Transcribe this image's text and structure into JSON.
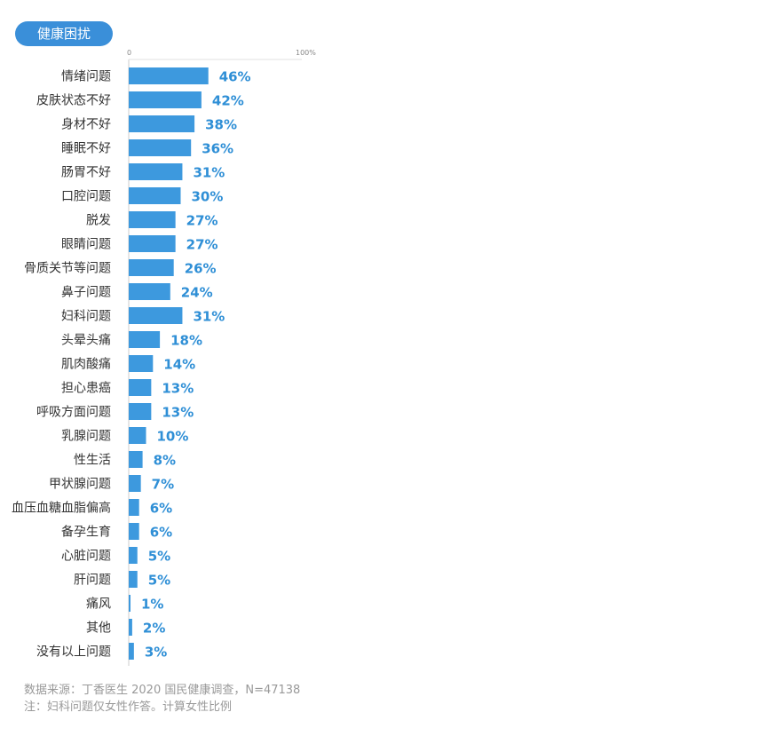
{
  "badge": "健康困扰",
  "footnotes": {
    "source": "数据来源：丁香医生 2020 国民健康调查，N=47138",
    "note": "注：妇科问题仅女性作答。计算女性比例"
  },
  "chart_data": {
    "type": "bar",
    "orientation": "horizontal",
    "title": "健康困扰",
    "categories": [
      "情绪问题",
      "皮肤状态不好",
      "身材不好",
      "睡眠不好",
      "肠胃不好",
      "口腔问题",
      "脱发",
      "眼睛问题",
      "骨质关节等问题",
      "鼻子问题",
      "妇科问题",
      "头晕头痛",
      "肌肉酸痛",
      "担心患癌",
      "呼吸方面问题",
      "乳腺问题",
      "性生活",
      "甲状腺问题",
      "血压血糖血脂偏高",
      "备孕生育",
      "心脏问题",
      "肝问题",
      "痛风",
      "其他",
      "没有以上问题"
    ],
    "values": [
      46,
      42,
      38,
      36,
      31,
      30,
      27,
      27,
      26,
      24,
      31,
      18,
      14,
      13,
      13,
      10,
      8,
      7,
      6,
      6,
      5,
      5,
      1,
      2,
      3
    ],
    "labels": [
      "46%",
      "42%",
      "38%",
      "36%",
      "31%",
      "30%",
      "27%",
      "27%",
      "26%",
      "24%",
      "31%",
      "18%",
      "14%",
      "13%",
      "13%",
      "10%",
      "8%",
      "7%",
      "6%",
      "6%",
      "5%",
      "5%",
      "1%",
      "2%",
      "3%"
    ],
    "xlim": [
      0,
      100
    ],
    "ticks": [
      "0",
      "100%"
    ],
    "unit": "%",
    "bar_color": "#3d99de",
    "label_color": "#2f8fd6",
    "grid": false
  }
}
